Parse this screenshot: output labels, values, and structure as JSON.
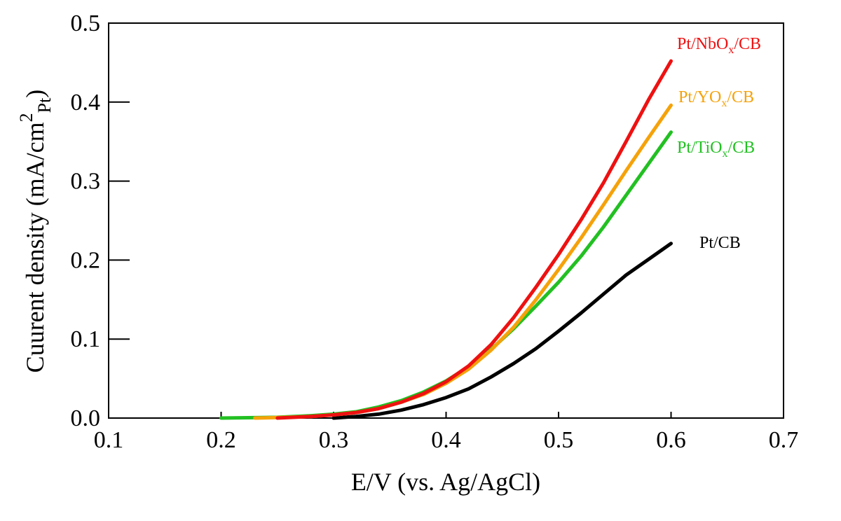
{
  "chart_data": {
    "type": "line",
    "xlabel": "E/V (vs. Ag/AgCl)",
    "ylabel": {
      "main": "Cuurent density (mA/cm",
      "sup": "2",
      "sub": "Pt",
      "close": ")"
    },
    "xlim": [
      0.1,
      0.7
    ],
    "ylim": [
      0.0,
      0.5
    ],
    "x_ticks": [
      "0.1",
      "0.2",
      "0.3",
      "0.4",
      "0.5",
      "0.6",
      "0.7"
    ],
    "y_ticks": [
      "0.0",
      "0.1",
      "0.2",
      "0.3",
      "0.4",
      "0.5"
    ],
    "grid": false,
    "legend": "inline labels at right end of curves",
    "series": [
      {
        "name": "Pt/CB",
        "label": {
          "pre": "Pt/CB",
          "sub": "",
          "post": ""
        },
        "color": "#000000",
        "points": [
          [
            0.3,
            0.0
          ],
          [
            0.32,
            0.002
          ],
          [
            0.34,
            0.005
          ],
          [
            0.36,
            0.01
          ],
          [
            0.38,
            0.017
          ],
          [
            0.4,
            0.026
          ],
          [
            0.42,
            0.037
          ],
          [
            0.44,
            0.052
          ],
          [
            0.46,
            0.069
          ],
          [
            0.48,
            0.088
          ],
          [
            0.5,
            0.11
          ],
          [
            0.52,
            0.133
          ],
          [
            0.54,
            0.157
          ],
          [
            0.56,
            0.181
          ],
          [
            0.58,
            0.201
          ],
          [
            0.6,
            0.221
          ]
        ]
      },
      {
        "name": "Pt/TiOx/CB",
        "label": {
          "pre": "Pt/TiO",
          "sub": "x",
          "post": "/CB"
        },
        "color": "#22c022",
        "points": [
          [
            0.2,
            0.0
          ],
          [
            0.25,
            0.001
          ],
          [
            0.28,
            0.003
          ],
          [
            0.3,
            0.005
          ],
          [
            0.32,
            0.008
          ],
          [
            0.34,
            0.014
          ],
          [
            0.36,
            0.022
          ],
          [
            0.38,
            0.033
          ],
          [
            0.4,
            0.047
          ],
          [
            0.42,
            0.065
          ],
          [
            0.44,
            0.087
          ],
          [
            0.46,
            0.113
          ],
          [
            0.48,
            0.142
          ],
          [
            0.5,
            0.172
          ],
          [
            0.52,
            0.205
          ],
          [
            0.54,
            0.242
          ],
          [
            0.56,
            0.282
          ],
          [
            0.58,
            0.322
          ],
          [
            0.6,
            0.362
          ]
        ]
      },
      {
        "name": "Pt/YOx/CB",
        "label": {
          "pre": "Pt/YO",
          "sub": "x",
          "post": "/CB"
        },
        "color": "#f5a20a",
        "points": [
          [
            0.23,
            0.0
          ],
          [
            0.26,
            0.001
          ],
          [
            0.28,
            0.002
          ],
          [
            0.3,
            0.004
          ],
          [
            0.32,
            0.007
          ],
          [
            0.34,
            0.012
          ],
          [
            0.36,
            0.02
          ],
          [
            0.38,
            0.03
          ],
          [
            0.4,
            0.044
          ],
          [
            0.42,
            0.062
          ],
          [
            0.44,
            0.086
          ],
          [
            0.46,
            0.115
          ],
          [
            0.48,
            0.15
          ],
          [
            0.5,
            0.188
          ],
          [
            0.52,
            0.228
          ],
          [
            0.54,
            0.27
          ],
          [
            0.56,
            0.313
          ],
          [
            0.58,
            0.355
          ],
          [
            0.6,
            0.396
          ]
        ]
      },
      {
        "name": "Pt/NbOx/CB",
        "label": {
          "pre": "Pt/NbO",
          "sub": "x",
          "post": "/CB"
        },
        "color": "#ee1111",
        "points": [
          [
            0.25,
            0.0
          ],
          [
            0.28,
            0.002
          ],
          [
            0.3,
            0.004
          ],
          [
            0.32,
            0.007
          ],
          [
            0.34,
            0.012
          ],
          [
            0.36,
            0.02
          ],
          [
            0.38,
            0.031
          ],
          [
            0.4,
            0.046
          ],
          [
            0.42,
            0.066
          ],
          [
            0.44,
            0.093
          ],
          [
            0.46,
            0.127
          ],
          [
            0.48,
            0.166
          ],
          [
            0.5,
            0.207
          ],
          [
            0.52,
            0.251
          ],
          [
            0.54,
            0.298
          ],
          [
            0.56,
            0.35
          ],
          [
            0.58,
            0.403
          ],
          [
            0.6,
            0.452
          ]
        ]
      }
    ]
  }
}
